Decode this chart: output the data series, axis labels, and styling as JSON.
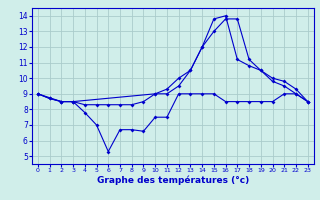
{
  "xlabel": "Graphe des températures (°c)",
  "background_color": "#d0eeea",
  "grid_color": "#aacccc",
  "line_color": "#0000cc",
  "spine_color": "#0000cc",
  "xlim": [
    -0.5,
    23.5
  ],
  "ylim": [
    4.5,
    14.5
  ],
  "xticks": [
    0,
    1,
    2,
    3,
    4,
    5,
    6,
    7,
    8,
    9,
    10,
    11,
    12,
    13,
    14,
    15,
    16,
    17,
    18,
    19,
    20,
    21,
    22,
    23
  ],
  "yticks": [
    5,
    6,
    7,
    8,
    9,
    10,
    11,
    12,
    13,
    14
  ],
  "series": [
    {
      "x": [
        0,
        1,
        2,
        3,
        4,
        5,
        6,
        7,
        8,
        9,
        10,
        11,
        12,
        13,
        14,
        15,
        16,
        17,
        18,
        19,
        20,
        21,
        22,
        23
      ],
      "y": [
        9.0,
        8.7,
        8.5,
        8.5,
        7.8,
        7.0,
        5.3,
        6.7,
        6.7,
        6.6,
        7.5,
        7.5,
        9.0,
        9.0,
        9.0,
        9.0,
        8.5,
        8.5,
        8.5,
        8.5,
        8.5,
        9.0,
        9.0,
        8.5
      ]
    },
    {
      "x": [
        0,
        1,
        2,
        3,
        4,
        5,
        6,
        7,
        8,
        9,
        10,
        11,
        12,
        13,
        14,
        15,
        16,
        17,
        18,
        19,
        20,
        21,
        22,
        23
      ],
      "y": [
        9.0,
        8.7,
        8.5,
        8.5,
        8.3,
        8.3,
        8.3,
        8.3,
        8.3,
        8.5,
        9.0,
        9.3,
        10.0,
        10.5,
        12.0,
        13.0,
        13.8,
        13.8,
        11.2,
        10.5,
        10.0,
        9.8,
        9.3,
        8.5
      ]
    },
    {
      "x": [
        0,
        2,
        3,
        10,
        11,
        12,
        13,
        14,
        15,
        16,
        17,
        18,
        19,
        20,
        21,
        22,
        23
      ],
      "y": [
        9.0,
        8.5,
        8.5,
        9.0,
        9.0,
        9.5,
        10.5,
        12.0,
        13.8,
        14.0,
        11.2,
        10.8,
        10.5,
        9.8,
        9.5,
        9.0,
        8.5
      ]
    }
  ],
  "xlabel_fontsize": 6.5,
  "tick_fontsize_x": 4.5,
  "tick_fontsize_y": 5.5,
  "linewidth": 0.8,
  "markersize": 2.0
}
